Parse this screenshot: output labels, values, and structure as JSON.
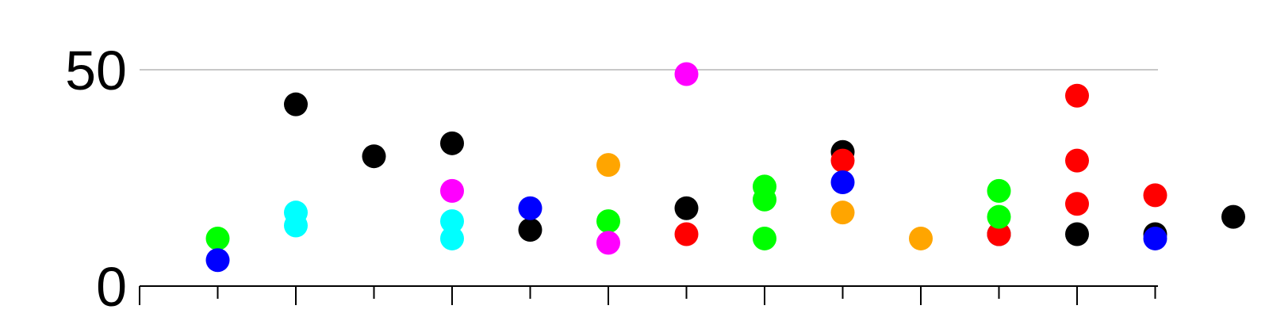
{
  "chart_data": {
    "type": "scatter",
    "title": "",
    "xlabel": "",
    "ylabel": "",
    "ylim": [
      0,
      50
    ],
    "grid": {
      "y": true,
      "x": false
    },
    "y_ticks": [
      {
        "value": 0,
        "label": "0"
      },
      {
        "value": 50,
        "label": "50"
      }
    ],
    "x_ticks": [
      0,
      1,
      2,
      3,
      4,
      5,
      6,
      7,
      8,
      9,
      10,
      11,
      12,
      13
    ],
    "series": [
      {
        "color": "#000000",
        "points": [
          {
            "x": 2,
            "y": 42
          },
          {
            "x": 3,
            "y": 30
          },
          {
            "x": 4,
            "y": 33
          },
          {
            "x": 5,
            "y": 13
          },
          {
            "x": 7,
            "y": 18
          },
          {
            "x": 9,
            "y": 31
          },
          {
            "x": 11,
            "y": 12
          },
          {
            "x": 12,
            "y": 12
          },
          {
            "x": 13,
            "y": 12
          },
          {
            "x": 14,
            "y": 16
          }
        ]
      },
      {
        "color": "#ff0000",
        "points": [
          {
            "x": 7,
            "y": 12
          },
          {
            "x": 9,
            "y": 29
          },
          {
            "x": 11,
            "y": 12
          },
          {
            "x": 12,
            "y": 44
          },
          {
            "x": 12,
            "y": 29
          },
          {
            "x": 12,
            "y": 19
          },
          {
            "x": 13,
            "y": 21
          }
        ]
      },
      {
        "color": "#00ff00",
        "points": [
          {
            "x": 1,
            "y": 11
          },
          {
            "x": 6,
            "y": 15
          },
          {
            "x": 8,
            "y": 11
          },
          {
            "x": 8,
            "y": 20
          },
          {
            "x": 8,
            "y": 23
          },
          {
            "x": 11,
            "y": 16
          },
          {
            "x": 11,
            "y": 22
          }
        ]
      },
      {
        "color": "#0000ff",
        "points": [
          {
            "x": 1,
            "y": 6
          },
          {
            "x": 5,
            "y": 18
          },
          {
            "x": 9,
            "y": 24
          },
          {
            "x": 13,
            "y": 11
          }
        ]
      },
      {
        "color": "#00ffff",
        "points": [
          {
            "x": 2,
            "y": 14
          },
          {
            "x": 2,
            "y": 17
          },
          {
            "x": 4,
            "y": 11
          },
          {
            "x": 4,
            "y": 15
          }
        ]
      },
      {
        "color": "#ff00ff",
        "points": [
          {
            "x": 4,
            "y": 22
          },
          {
            "x": 6,
            "y": 10
          },
          {
            "x": 7,
            "y": 49
          }
        ]
      },
      {
        "color": "#ffa500",
        "points": [
          {
            "x": 6,
            "y": 28
          },
          {
            "x": 9,
            "y": 17
          },
          {
            "x": 10,
            "y": 11
          }
        ]
      }
    ]
  }
}
